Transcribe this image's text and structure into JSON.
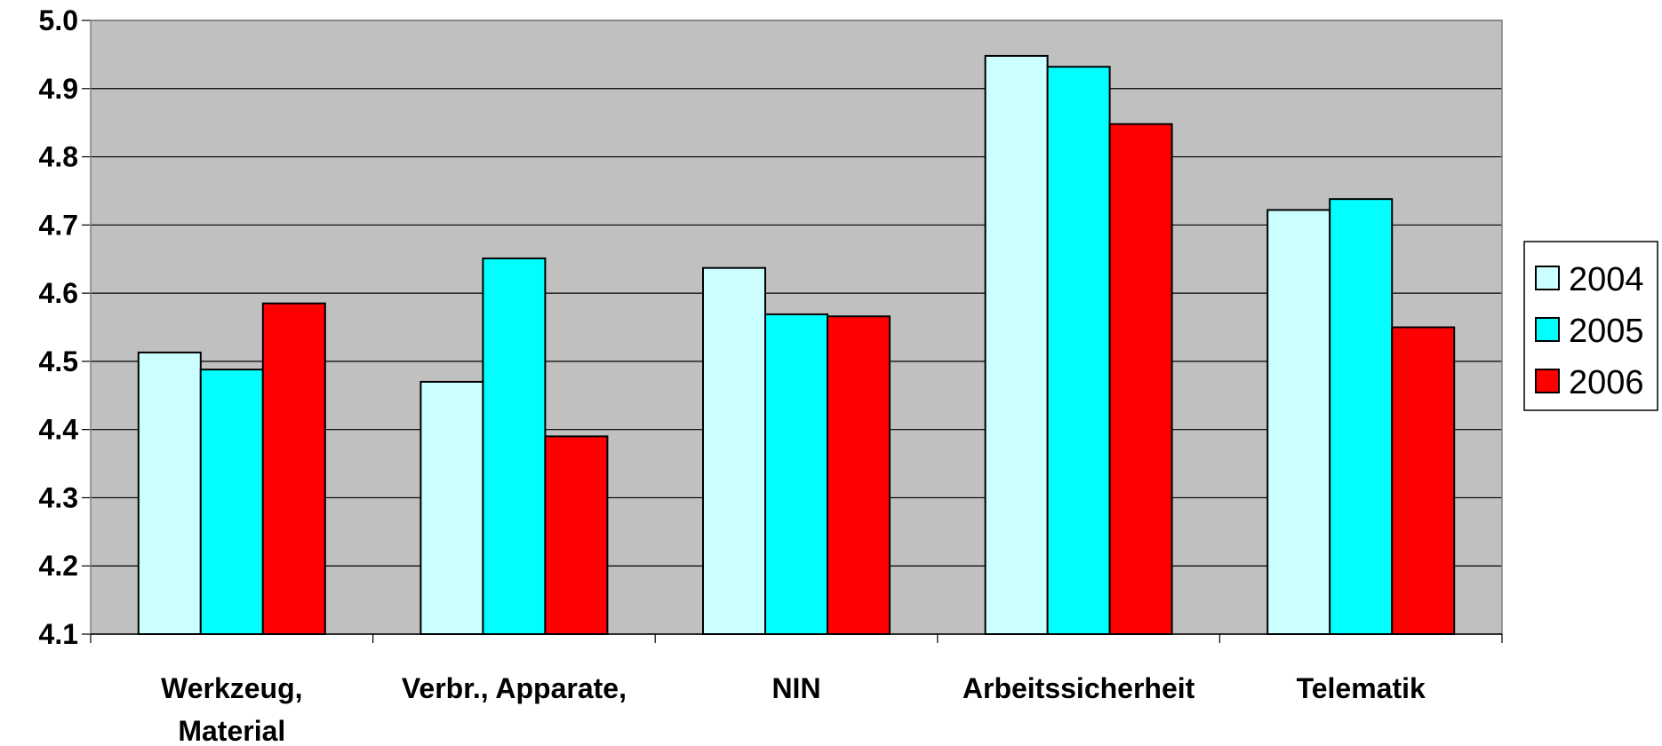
{
  "chart_data": {
    "type": "bar",
    "title": "",
    "xlabel": "",
    "ylabel": "",
    "ylim": [
      4.1,
      5.0
    ],
    "yticks": [
      "4.1",
      "4.2",
      "4.3",
      "4.4",
      "4.5",
      "4.6",
      "4.7",
      "4.8",
      "4.9",
      "5.0"
    ],
    "grid": true,
    "legend_position": "right",
    "categories": [
      [
        "Werkzeug,",
        "Material"
      ],
      [
        "Verbr., Apparate,"
      ],
      [
        "NIN"
      ],
      [
        "Arbeitssicherheit"
      ],
      [
        "Telematik"
      ]
    ],
    "series": [
      {
        "name": "2004",
        "color": "#ccffff",
        "values": [
          4.513,
          4.47,
          4.637,
          4.948,
          4.722
        ]
      },
      {
        "name": "2005",
        "color": "#00ffff",
        "values": [
          4.488,
          4.651,
          4.569,
          4.932,
          4.738
        ]
      },
      {
        "name": "2006",
        "color": "#ff0000",
        "values": [
          4.585,
          4.39,
          4.566,
          4.848,
          4.55
        ]
      }
    ],
    "plot_background": "#c0c0c0"
  }
}
